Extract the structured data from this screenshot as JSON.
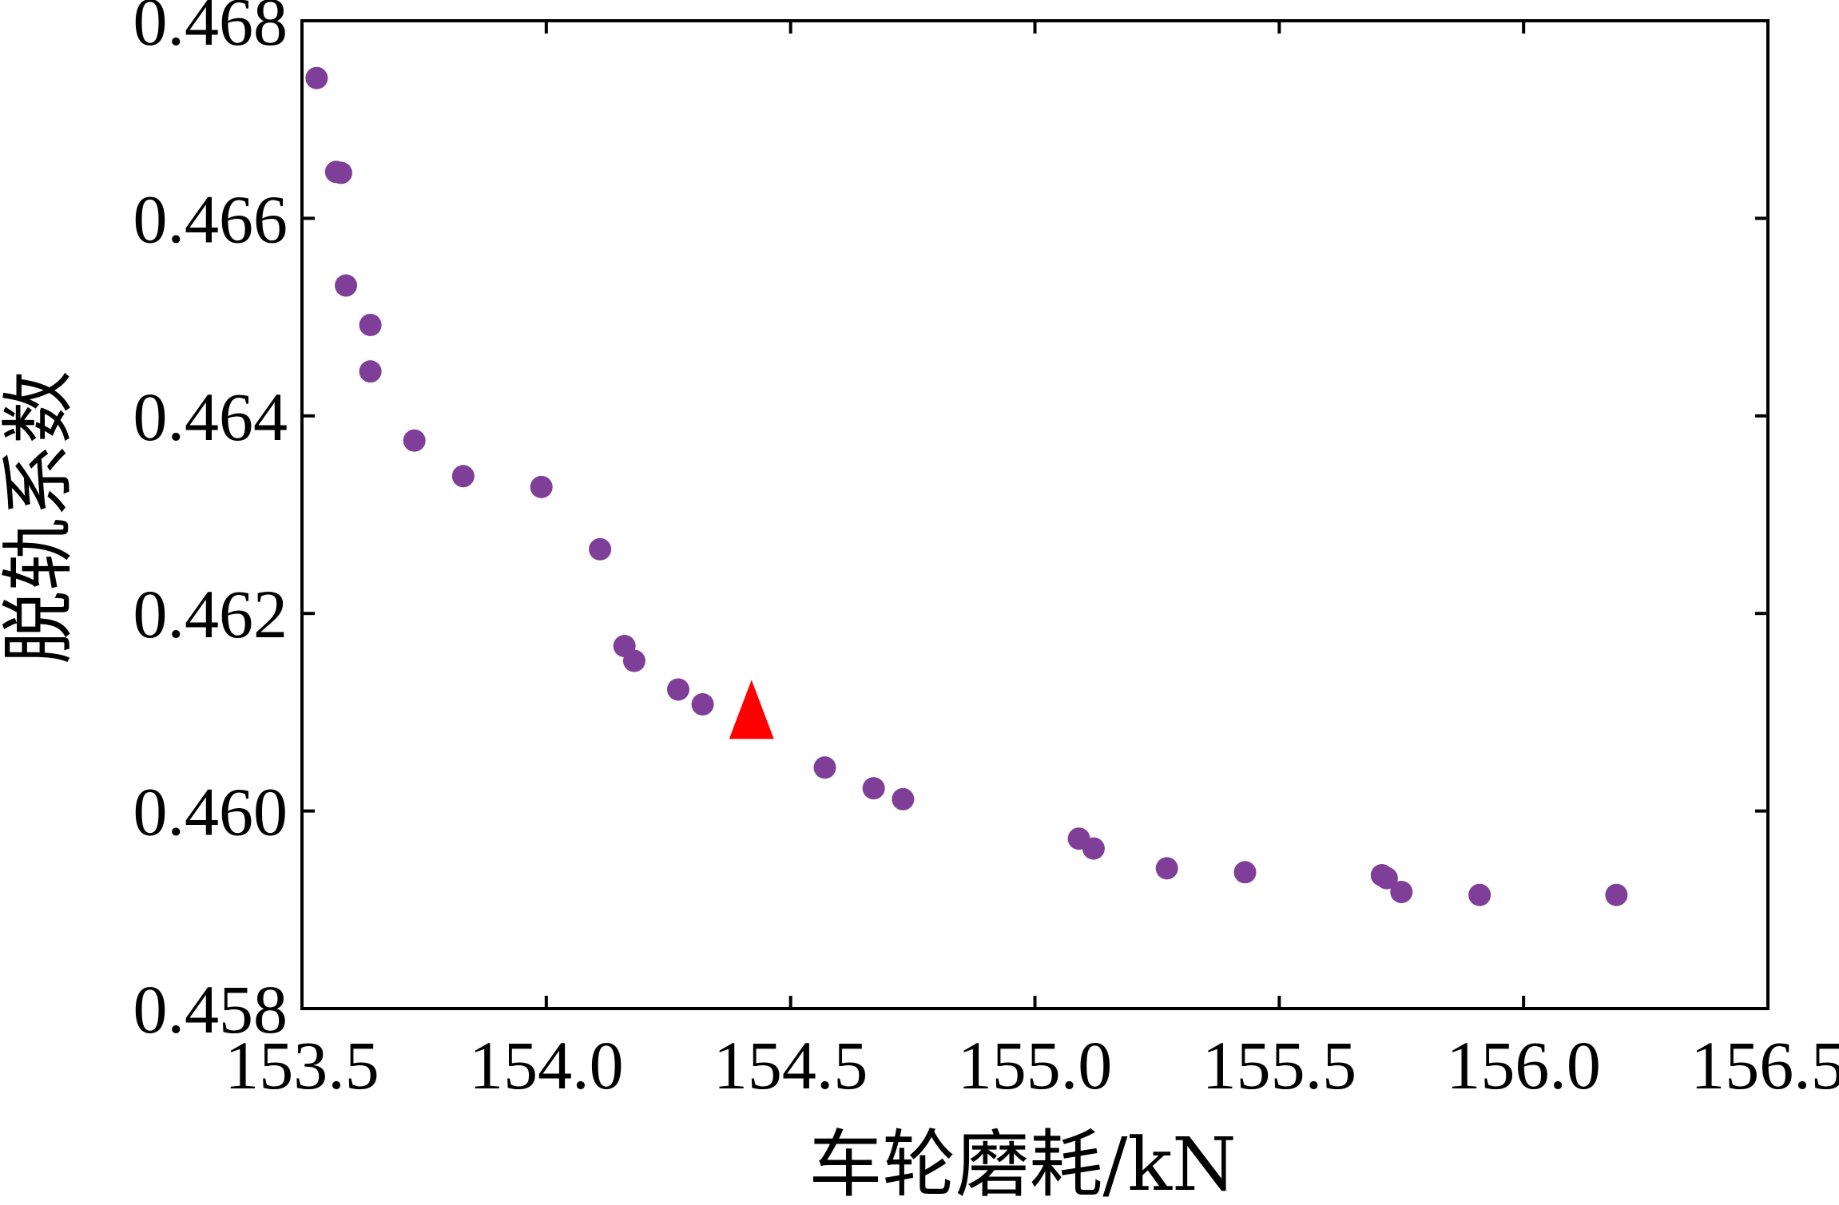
{
  "chart_data": {
    "type": "scatter",
    "xlabel": "车轮磨耗/kN",
    "ylabel": "脱轨系数",
    "xlim": [
      153.5,
      156.5
    ],
    "ylim": [
      0.458,
      0.468
    ],
    "x_ticks": [
      "153.5",
      "154.0",
      "154.5",
      "155.0",
      "155.5",
      "156.0",
      "156.5"
    ],
    "y_ticks": [
      "0.458",
      "0.460",
      "0.462",
      "0.464",
      "0.466",
      "0.468"
    ],
    "tick_direction": "in",
    "grid": false,
    "legend": "none",
    "series": [
      {
        "marker": "circle",
        "color": "#7f3f98",
        "points": [
          {
            "x": 153.53,
            "y": 0.46742
          },
          {
            "x": 153.57,
            "y": 0.46647
          },
          {
            "x": 153.58,
            "y": 0.46646
          },
          {
            "x": 153.59,
            "y": 0.46532
          },
          {
            "x": 153.64,
            "y": 0.46492
          },
          {
            "x": 153.64,
            "y": 0.46445
          },
          {
            "x": 153.73,
            "y": 0.46375
          },
          {
            "x": 153.83,
            "y": 0.46339
          },
          {
            "x": 153.99,
            "y": 0.46328
          },
          {
            "x": 154.11,
            "y": 0.46265
          },
          {
            "x": 154.16,
            "y": 0.46167
          },
          {
            "x": 154.18,
            "y": 0.46152
          },
          {
            "x": 154.27,
            "y": 0.46123
          },
          {
            "x": 154.32,
            "y": 0.46108
          },
          {
            "x": 154.57,
            "y": 0.46044
          },
          {
            "x": 154.67,
            "y": 0.46023
          },
          {
            "x": 154.73,
            "y": 0.46012
          },
          {
            "x": 155.09,
            "y": 0.45972
          },
          {
            "x": 155.12,
            "y": 0.45962
          },
          {
            "x": 155.27,
            "y": 0.45942
          },
          {
            "x": 155.43,
            "y": 0.45938
          },
          {
            "x": 155.71,
            "y": 0.45935
          },
          {
            "x": 155.72,
            "y": 0.45932
          },
          {
            "x": 155.75,
            "y": 0.45918
          },
          {
            "x": 155.91,
            "y": 0.45915
          },
          {
            "x": 156.19,
            "y": 0.45915
          }
        ]
      },
      {
        "marker": "triangle",
        "color": "#ff0000",
        "points": [
          {
            "x": 154.42,
            "y": 0.46102
          }
        ]
      }
    ]
  }
}
